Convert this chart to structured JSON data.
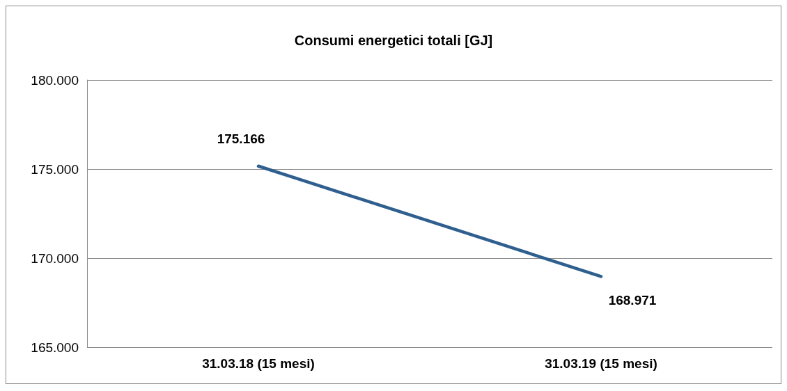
{
  "chart_data": {
    "type": "line",
    "title": "Consumi energetici totali [GJ]",
    "categories": [
      "31.03.18 (15 mesi)",
      "31.03.19 (15 mesi)"
    ],
    "series": [
      {
        "color": "#2f5f8f",
        "values": [
          175166,
          168971
        ],
        "value_labels": [
          "175.166",
          "168.971"
        ]
      }
    ],
    "ylim": [
      165000,
      180000
    ],
    "yticks": [
      {
        "value": 165000,
        "label": "165.000"
      },
      {
        "value": 170000,
        "label": "170.000"
      },
      {
        "value": 175000,
        "label": "175.000"
      },
      {
        "value": 180000,
        "label": "180.000"
      }
    ],
    "grid": "y",
    "marker": "none",
    "line_style": "solid"
  }
}
